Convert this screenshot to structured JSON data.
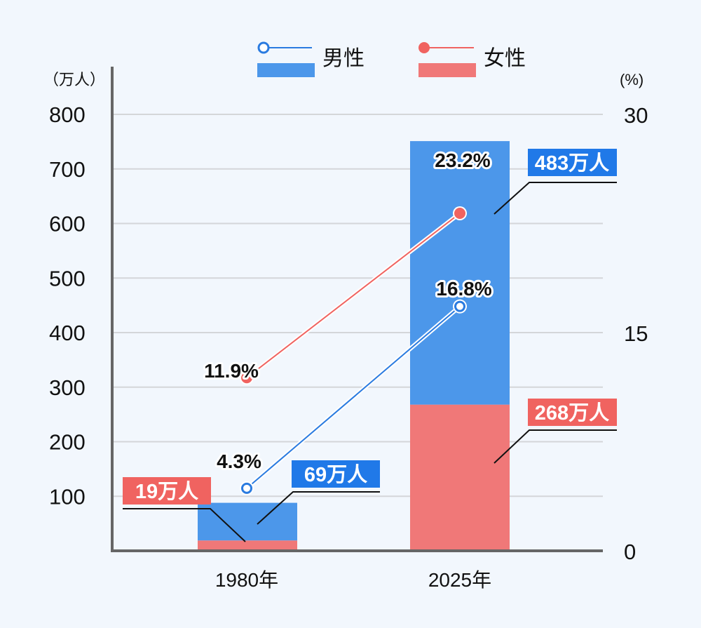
{
  "chart_data": {
    "type": "bar+line",
    "categories": [
      "1980年",
      "2025年"
    ],
    "series": [
      {
        "name": "女性",
        "kind": "bar",
        "values": [
          19,
          268
        ],
        "labels": [
          "19万人",
          "268万人"
        ],
        "unit": "万人"
      },
      {
        "name": "男性",
        "kind": "bar",
        "values": [
          69,
          483
        ],
        "labels": [
          "69万人",
          "483万人"
        ],
        "unit": "万人"
      },
      {
        "name": "男性",
        "kind": "line",
        "axis": "right",
        "values": [
          4.3,
          16.8
        ],
        "labels": [
          "4.3%",
          "16.8%"
        ]
      },
      {
        "name": "女性",
        "kind": "line",
        "axis": "right",
        "values": [
          11.9,
          23.2
        ],
        "labels": [
          "11.9%",
          "23.2%"
        ]
      }
    ],
    "left_axis": {
      "unit_label": "（万人）",
      "ylim": [
        0,
        800
      ],
      "ticks": [
        "100",
        "200",
        "300",
        "400",
        "500",
        "600",
        "700",
        "800"
      ]
    },
    "right_axis": {
      "unit_label": "(%)",
      "ylim": [
        0,
        30
      ],
      "ticks": [
        "0",
        "15",
        "30"
      ]
    },
    "legend": {
      "placement": "top",
      "male": "男性",
      "female": "女性"
    },
    "grid": true,
    "colors": {
      "male_bar": "#4C97EA",
      "female_bar": "#F07878",
      "male_label": "#2079E8",
      "female_label": "#F06360",
      "male_line": "#2A7BE0",
      "female_line": "#F06360"
    }
  }
}
